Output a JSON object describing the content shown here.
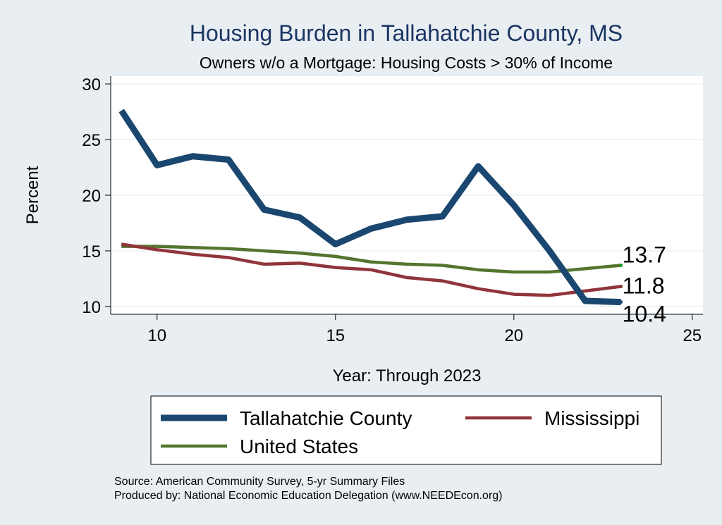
{
  "chart_data": {
    "type": "line",
    "title": "Housing Burden in Tallahatchie County, MS",
    "subtitle": "Owners w/o a Mortgage: Housing Costs > 30% of Income",
    "xlabel": "Year: Through 2023",
    "ylabel": "Percent",
    "xlim": [
      8.7,
      25.3
    ],
    "ylim": [
      9.3,
      30.7
    ],
    "xticks": [
      10,
      15,
      20,
      25
    ],
    "yticks": [
      10,
      15,
      20,
      25,
      30
    ],
    "grid": true,
    "legend_position": "bottom",
    "x": [
      9,
      10,
      11,
      12,
      13,
      14,
      15,
      16,
      17,
      18,
      19,
      20,
      21,
      22,
      23
    ],
    "series": [
      {
        "name": "Tallahatchie County",
        "color": "#1a476f",
        "values": [
          27.6,
          22.7,
          23.5,
          23.2,
          18.7,
          18.0,
          15.6,
          17.0,
          17.8,
          18.1,
          22.6,
          19.1,
          15.0,
          10.5,
          10.4
        ],
        "end_label": "10.4"
      },
      {
        "name": "Mississippi",
        "color": "#90353b",
        "values": [
          15.6,
          15.1,
          14.7,
          14.4,
          13.8,
          13.9,
          13.5,
          13.3,
          12.6,
          12.3,
          11.6,
          11.1,
          11.0,
          11.4,
          11.8
        ],
        "end_label": "11.8"
      },
      {
        "name": "United States",
        "color": "#55752f",
        "values": [
          15.4,
          15.4,
          15.3,
          15.2,
          15.0,
          14.8,
          14.5,
          14.0,
          13.8,
          13.7,
          13.3,
          13.1,
          13.1,
          13.4,
          13.7
        ],
        "end_label": "13.7"
      }
    ]
  },
  "notes": {
    "source": "Source: American Community Survey, 5-yr Summary Files",
    "produced_by": "Produced by: National Economic Education Delegation (www.NEEDEcon.org)"
  }
}
